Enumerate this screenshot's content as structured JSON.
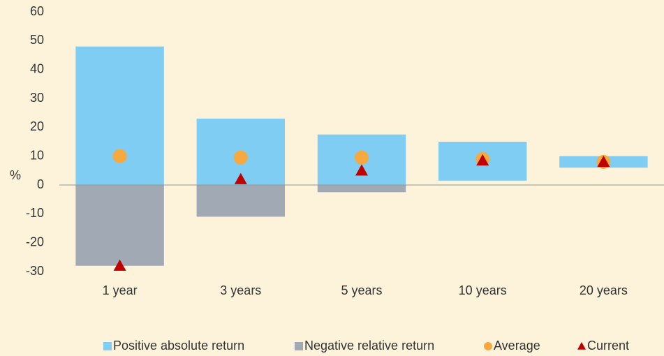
{
  "chart_data": {
    "type": "floating_bar",
    "ylabel": "%",
    "categories": [
      "1 year",
      "3 years",
      "5 years",
      "10 years",
      "20 years"
    ],
    "ylim": [
      -30,
      60
    ],
    "yticks": [
      -30,
      -20,
      -10,
      0,
      10,
      20,
      30,
      40,
      50,
      60
    ],
    "grid": false,
    "legend": "bottom",
    "series": [
      {
        "name": "Positive absolute return",
        "color": "#80cdf3",
        "marker": "bar",
        "low": [
          0,
          0,
          0,
          1.5,
          6
        ],
        "high": [
          48,
          23,
          17.5,
          15,
          10
        ]
      },
      {
        "name": "Negative relative return",
        "color": "#a1a9b4",
        "marker": "bar",
        "low": [
          -28,
          -11,
          -2.5,
          null,
          null
        ],
        "high": [
          0,
          0,
          0,
          null,
          null
        ]
      },
      {
        "name": "Average",
        "color": "#f6a93e",
        "marker": "circle",
        "values": [
          10,
          9.5,
          9.5,
          9,
          8
        ]
      },
      {
        "name": "Current",
        "color": "#c00000",
        "marker": "triangle",
        "values": [
          -28,
          2,
          5,
          8.5,
          8
        ]
      }
    ]
  }
}
